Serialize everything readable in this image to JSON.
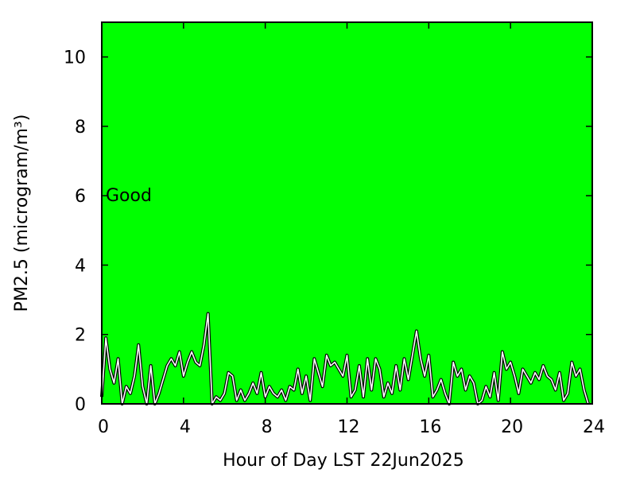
{
  "chart_data": {
    "type": "line",
    "xlabel": "Hour of Day LST 22Jun2025",
    "ylabel": "PM2.5 (microgram/m³)",
    "annotation": "Good",
    "background": "#00ff00",
    "xlim": [
      0,
      24
    ],
    "xticks": [
      0,
      4,
      8,
      12,
      16,
      20,
      24
    ],
    "ylim": [
      0,
      11
    ],
    "yticks": [
      0,
      2,
      4,
      6,
      8,
      10
    ],
    "series": [
      {
        "color": "#ffffff",
        "x": [
          0.0,
          0.2,
          0.4,
          0.6,
          0.8,
          1.0,
          1.2,
          1.4,
          1.6,
          1.8,
          2.0,
          2.2,
          2.4,
          2.6,
          2.8,
          3.0,
          3.2,
          3.4,
          3.6,
          3.8,
          4.0,
          4.2,
          4.4,
          4.6,
          4.8,
          5.0,
          5.2,
          5.4,
          5.6,
          5.8,
          6.0,
          6.2,
          6.4,
          6.6,
          6.8,
          7.0,
          7.2,
          7.4,
          7.6,
          7.8,
          8.0,
          8.2,
          8.4,
          8.6,
          8.8,
          9.0,
          9.2,
          9.4,
          9.6,
          9.8,
          10.0,
          10.2,
          10.4,
          10.6,
          10.8,
          11.0,
          11.2,
          11.4,
          11.6,
          11.8,
          12.0,
          12.2,
          12.4,
          12.6,
          12.8,
          13.0,
          13.2,
          13.4,
          13.6,
          13.8,
          14.0,
          14.2,
          14.4,
          14.6,
          14.8,
          15.0,
          15.2,
          15.4,
          15.6,
          15.8,
          16.0,
          16.2,
          16.4,
          16.6,
          16.8,
          17.0,
          17.2,
          17.4,
          17.6,
          17.8,
          18.0,
          18.2,
          18.4,
          18.6,
          18.8,
          19.0,
          19.2,
          19.4,
          19.6,
          19.8,
          20.0,
          20.2,
          20.4,
          20.6,
          20.8,
          21.0,
          21.2,
          21.4,
          21.6,
          21.8,
          22.0,
          22.2,
          22.4,
          22.6,
          22.8,
          23.0,
          23.2,
          23.4,
          23.6,
          23.8
        ],
        "values": [
          0.2,
          1.9,
          1.0,
          0.6,
          1.3,
          0,
          0.5,
          0.3,
          0.8,
          1.7,
          0.5,
          0,
          1.1,
          0,
          0.3,
          0.7,
          1.1,
          1.3,
          1.1,
          1.5,
          0.8,
          1.2,
          1.5,
          1.2,
          1.1,
          1.7,
          2.6,
          0,
          0.2,
          0.1,
          0.3,
          0.9,
          0.8,
          0.1,
          0.4,
          0.1,
          0.3,
          0.6,
          0.3,
          0.9,
          0.2,
          0.5,
          0.3,
          0.2,
          0.4,
          0.1,
          0.5,
          0.4,
          1.0,
          0.3,
          0.8,
          0.1,
          1.3,
          0.9,
          0.5,
          1.4,
          1.1,
          1.2,
          1.0,
          0.8,
          1.4,
          0.2,
          0.4,
          1.1,
          0.2,
          1.3,
          0.4,
          1.3,
          1.0,
          0.2,
          0.6,
          0.3,
          1.1,
          0.4,
          1.3,
          0.7,
          1.4,
          2.1,
          1.3,
          0.8,
          1.4,
          0.2,
          0.4,
          0.7,
          0.3,
          0,
          1.2,
          0.8,
          1.0,
          0.4,
          0.8,
          0.6,
          0,
          0.1,
          0.5,
          0.2,
          0.9,
          0.1,
          1.5,
          1.0,
          1.2,
          0.8,
          0.3,
          1.0,
          0.8,
          0.6,
          0.9,
          0.7,
          1.1,
          0.8,
          0.7,
          0.4,
          0.9,
          0.1,
          0.3,
          1.2,
          0.8,
          1.0,
          0.4,
          0
        ]
      }
    ]
  }
}
